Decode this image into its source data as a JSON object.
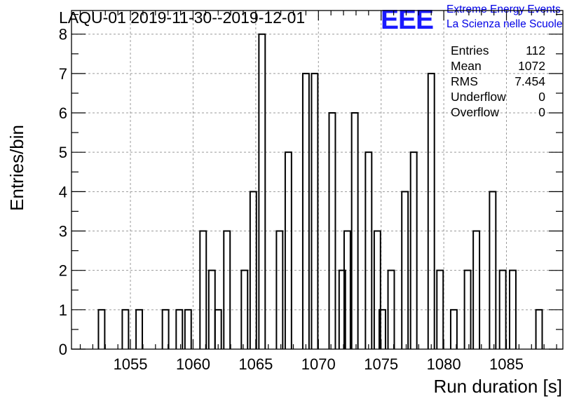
{
  "title": "LAQU-01 2019-11-30--2019-12-01",
  "logo": {
    "letters": "EEE",
    "line1": "Extreme Energy Events",
    "line2": "La Scienza nelle Scuole",
    "color": "#1a1aff"
  },
  "stats": [
    {
      "label": "Entries",
      "value": "112"
    },
    {
      "label": "Mean",
      "value": "1072"
    },
    {
      "label": "RMS",
      "value": "7.454"
    },
    {
      "label": "Underflow",
      "value": "0"
    },
    {
      "label": "Overflow",
      "value": "0"
    }
  ],
  "chart_data": {
    "type": "bar",
    "histogram": true,
    "xlabel": "Run duration [s]",
    "ylabel": "Entries/bin",
    "xlim": [
      1050.3,
      1089.5
    ],
    "ylim": [
      0,
      8.6
    ],
    "bin_width": 0.5,
    "x_ticks": [
      1055,
      1060,
      1065,
      1070,
      1075,
      1080,
      1085
    ],
    "x_tick_labels": [
      "1055",
      "1060",
      "1065",
      "1070",
      "1075",
      "1080",
      "1085"
    ],
    "y_ticks": [
      0,
      1,
      2,
      3,
      4,
      5,
      6,
      7,
      8
    ],
    "y_tick_labels": [
      "0",
      "1",
      "2",
      "3",
      "4",
      "5",
      "6",
      "7",
      "8"
    ],
    "grid": true,
    "bins": [
      {
        "x": 1052.7,
        "count": 1
      },
      {
        "x": 1054.6,
        "count": 1
      },
      {
        "x": 1055.7,
        "count": 1
      },
      {
        "x": 1057.8,
        "count": 1
      },
      {
        "x": 1058.9,
        "count": 1
      },
      {
        "x": 1059.6,
        "count": 1
      },
      {
        "x": 1060.8,
        "count": 3
      },
      {
        "x": 1061.5,
        "count": 2
      },
      {
        "x": 1062.0,
        "count": 1
      },
      {
        "x": 1062.7,
        "count": 3
      },
      {
        "x": 1064.1,
        "count": 2
      },
      {
        "x": 1064.8,
        "count": 4
      },
      {
        "x": 1065.5,
        "count": 8
      },
      {
        "x": 1066.9,
        "count": 3
      },
      {
        "x": 1067.6,
        "count": 5
      },
      {
        "x": 1069.0,
        "count": 7
      },
      {
        "x": 1069.7,
        "count": 7
      },
      {
        "x": 1071.1,
        "count": 6
      },
      {
        "x": 1071.9,
        "count": 2
      },
      {
        "x": 1072.3,
        "count": 3
      },
      {
        "x": 1072.9,
        "count": 6
      },
      {
        "x": 1074.0,
        "count": 5
      },
      {
        "x": 1074.7,
        "count": 3
      },
      {
        "x": 1075.1,
        "count": 1
      },
      {
        "x": 1075.8,
        "count": 2
      },
      {
        "x": 1076.9,
        "count": 4
      },
      {
        "x": 1077.6,
        "count": 5
      },
      {
        "x": 1079.0,
        "count": 7
      },
      {
        "x": 1079.7,
        "count": 2
      },
      {
        "x": 1080.8,
        "count": 1
      },
      {
        "x": 1081.9,
        "count": 2
      },
      {
        "x": 1082.6,
        "count": 3
      },
      {
        "x": 1083.9,
        "count": 4
      },
      {
        "x": 1084.7,
        "count": 2
      },
      {
        "x": 1085.5,
        "count": 2
      },
      {
        "x": 1087.6,
        "count": 1
      }
    ],
    "line_color": "#000000",
    "grid_color": "#9a9a9a"
  }
}
